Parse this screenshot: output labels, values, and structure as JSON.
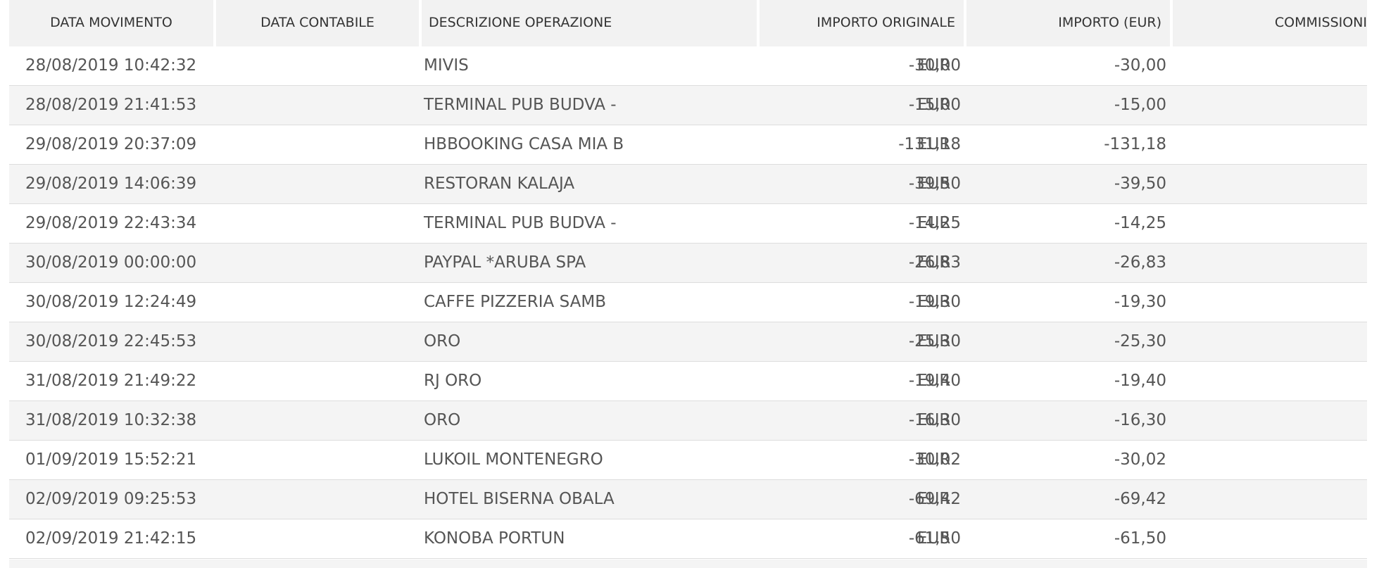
{
  "headers": {
    "data_movimento": "DATA MOVIMENTO",
    "data_contabile": "DATA CONTABILE",
    "descrizione": "DESCRIZIONE OPERAZIONE",
    "importo_originale": "IMPORTO ORIGINALE",
    "importo_eur": "IMPORTO (EUR)",
    "commissioni": "COMMISSIONI"
  },
  "rows": [
    {
      "date": "28/08/2019 10:42:32",
      "desc": "MIVIS",
      "orig": "-30,00",
      "currency": "EUR",
      "eur": "-30,00"
    },
    {
      "date": "28/08/2019 21:41:53",
      "desc": "TERMINAL PUB BUDVA -",
      "orig": "-15,00",
      "currency": "EUR",
      "eur": "-15,00"
    },
    {
      "date": "29/08/2019 20:37:09",
      "desc": "HBBOOKING CASA MIA B",
      "orig": "-131,18",
      "currency": "EUR",
      "eur": "-131,18"
    },
    {
      "date": "29/08/2019 14:06:39",
      "desc": "RESTORAN KALAJA",
      "orig": "-39,50",
      "currency": "EUR",
      "eur": "-39,50"
    },
    {
      "date": "29/08/2019 22:43:34",
      "desc": "TERMINAL PUB BUDVA -",
      "orig": "-14,25",
      "currency": "EUR",
      "eur": "-14,25"
    },
    {
      "date": "30/08/2019 00:00:00",
      "desc": "PAYPAL *ARUBA SPA",
      "orig": "-26,83",
      "currency": "EUR",
      "eur": "-26,83"
    },
    {
      "date": "30/08/2019 12:24:49",
      "desc": "CAFFE PIZZERIA SAMB",
      "orig": "-19,30",
      "currency": "EUR",
      "eur": "-19,30"
    },
    {
      "date": "30/08/2019 22:45:53",
      "desc": "ORO",
      "orig": "-25,30",
      "currency": "EUR",
      "eur": "-25,30"
    },
    {
      "date": "31/08/2019 21:49:22",
      "desc": "RJ ORO",
      "orig": "-19,40",
      "currency": "EUR",
      "eur": "-19,40"
    },
    {
      "date": "31/08/2019 10:32:38",
      "desc": "ORO",
      "orig": "-16,30",
      "currency": "EUR",
      "eur": "-16,30"
    },
    {
      "date": "01/09/2019 15:52:21",
      "desc": "LUKOIL MONTENEGRO",
      "orig": "-30,02",
      "currency": "EUR",
      "eur": "-30,02"
    },
    {
      "date": "02/09/2019 09:25:53",
      "desc": "HOTEL BISERNA OBALA",
      "orig": "-69,42",
      "currency": "EUR",
      "eur": "-69,42"
    },
    {
      "date": "02/09/2019 21:42:15",
      "desc": "KONOBA PORTUN",
      "orig": "-61,50",
      "currency": "EUR",
      "eur": "-61,50"
    }
  ]
}
